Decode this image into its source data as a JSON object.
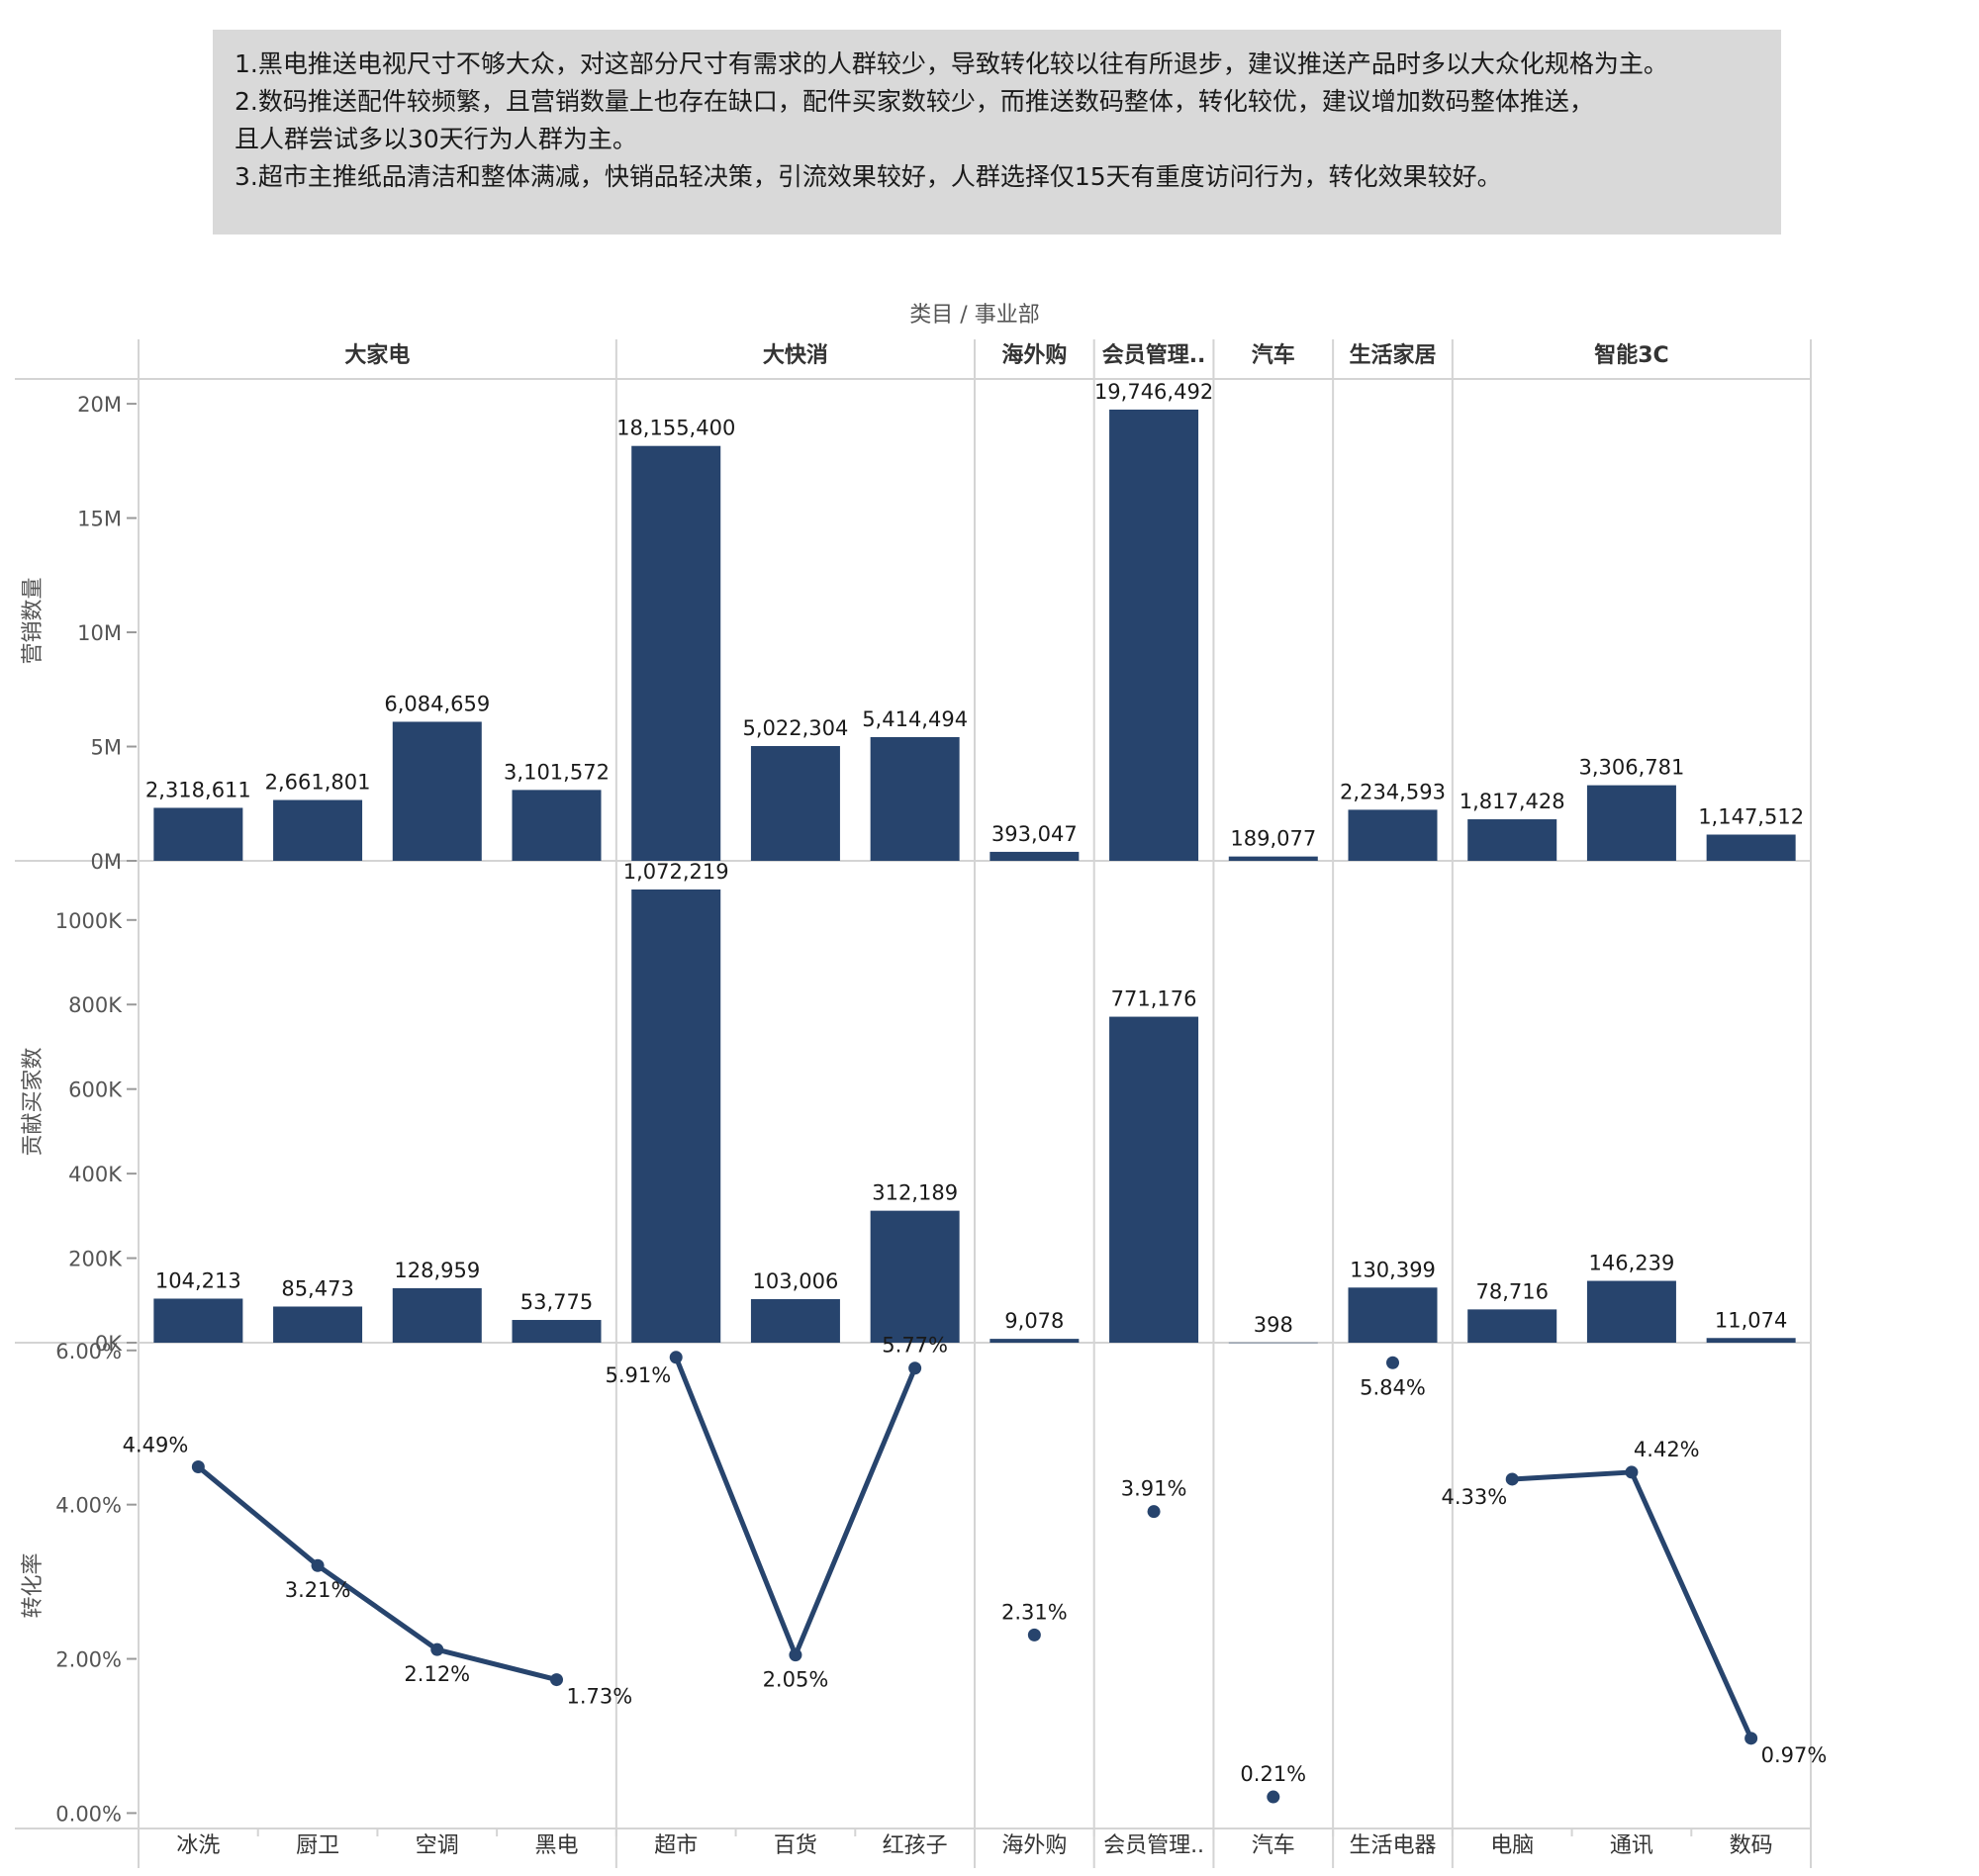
{
  "notes": [
    "1.黑电推送电视尺寸不够大众，对这部分尺寸有需求的人群较少，导致转化较以往有所退步，建议推送产品时多以大众化规格为主。",
    "2.数码推送配件较频繁，且营销数量上也存在缺口，配件买家数较少，而推送数码整体，转化较优，建议增加数码整体推送，",
    "且人群尝试多以30天行为人群为主。",
    "3.超市主推纸品清洁和整体满减，快销品轻决策，引流效果较好，人群选择仅15天有重度访问行为，转化效果较好。"
  ],
  "chart_data": {
    "type": "bar",
    "column_header": "类目 / 事业部",
    "departments": [
      {
        "name": "大家电",
        "categories": [
          "冰洗",
          "厨卫",
          "空调",
          "黑电"
        ]
      },
      {
        "name": "大快消",
        "categories": [
          "超市",
          "百货",
          "红孩子"
        ]
      },
      {
        "name": "海外购",
        "categories": [
          "海外购"
        ]
      },
      {
        "name": "会员管理..",
        "categories": [
          "会员管理.."
        ]
      },
      {
        "name": "汽车",
        "categories": [
          "汽车"
        ]
      },
      {
        "name": "生活家居",
        "categories": [
          "生活电器"
        ]
      },
      {
        "name": "智能3C",
        "categories": [
          "电脑",
          "通讯",
          "数码"
        ]
      }
    ],
    "panels": [
      {
        "ylabel": "营销数量",
        "mark": "bar",
        "ylim": [
          0,
          21000000
        ],
        "ticks": [
          0,
          5000000,
          10000000,
          15000000,
          20000000
        ],
        "tick_labels": [
          "0M",
          "5M",
          "10M",
          "15M",
          "20M"
        ],
        "values": [
          2318611,
          2661801,
          6084659,
          3101572,
          18155400,
          5022304,
          5414494,
          393047,
          19746492,
          189077,
          2234593,
          1817428,
          3306781,
          1147512
        ],
        "labels": [
          "2,318,611",
          "2,661,801",
          "6,084,659",
          "3,101,572",
          "18,155,400",
          "5,022,304",
          "5,414,494",
          "393,047",
          "19,746,492",
          "189,077",
          "2,234,593",
          "1,817,428",
          "3,306,781",
          "1,147,512"
        ]
      },
      {
        "ylabel": "贡献买家数",
        "mark": "bar",
        "ylim": [
          0,
          1140000
        ],
        "ticks": [
          0,
          200000,
          400000,
          600000,
          800000,
          1000000
        ],
        "tick_labels": [
          "0K",
          "200K",
          "400K",
          "600K",
          "800K",
          "1000K"
        ],
        "values": [
          104213,
          85473,
          128959,
          53775,
          1072219,
          103006,
          312189,
          9078,
          771176,
          398,
          130399,
          78716,
          146239,
          11074
        ],
        "labels": [
          "104,213",
          "85,473",
          "128,959",
          "53,775",
          "1,072,219",
          "103,006",
          "312,189",
          "9,078",
          "771,176",
          "398",
          "130,399",
          "78,716",
          "146,239",
          "11,074"
        ]
      },
      {
        "ylabel": "转化率",
        "mark": "line",
        "ylim": [
          -0.2,
          6.1
        ],
        "ticks": [
          0,
          2,
          4,
          6
        ],
        "tick_labels": [
          "0.00%",
          "2.00%",
          "4.00%",
          "6.00%"
        ],
        "values": [
          4.49,
          3.21,
          2.12,
          1.73,
          5.91,
          2.05,
          5.77,
          2.31,
          3.91,
          0.21,
          5.84,
          4.33,
          4.42,
          0.97
        ],
        "labels": [
          "4.49%",
          "3.21%",
          "2.12%",
          "1.73%",
          "5.91%",
          "2.05%",
          "5.77%",
          "2.31%",
          "3.91%",
          "0.21%",
          "5.84%",
          "4.33%",
          "4.42%",
          "0.97%"
        ]
      }
    ],
    "colors": {
      "mark": "#27446d",
      "grid": "#d4d4d4",
      "text": "#1a1a1a",
      "axis_text": "#555555"
    }
  }
}
